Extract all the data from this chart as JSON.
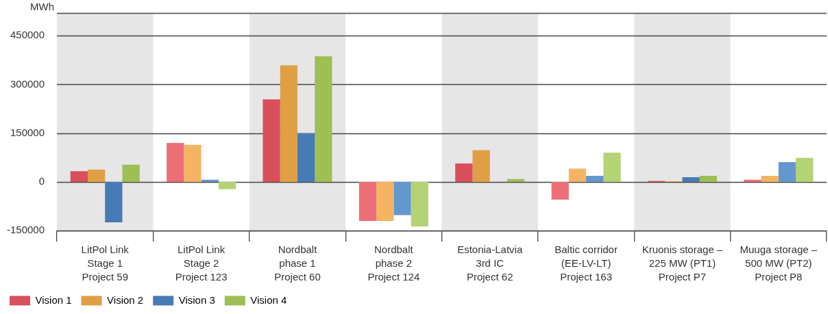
{
  "chart_data": {
    "type": "bar",
    "ylabel": "MWh",
    "categories": [
      "LitPol Link\nStage 1\nProject 59",
      "LitPol Link\nStage 2\nProject 123",
      "Nordbalt\nphase 1\nProject 60",
      "Nordbalt\nphase 2\nProject 124",
      "Estonia-Latvia\n3rd IC\nProject 62",
      "Baltic corridor\n(EE-LV-LT)\nProject 163",
      "Kruonis storage –\n225 MW (PT1)\nProject P7",
      "Muuga storage –\n500 MW (PT2)\nProject P8"
    ],
    "series": [
      {
        "name": "Vision 1",
        "color": "#d94f5c",
        "colors": [
          "#d94f5c",
          "#ec6f78",
          "#d94f5c",
          "#ec6f78",
          "#d94f5c",
          "#ec6f78",
          "#d94f5c",
          "#ec6f78"
        ],
        "values": [
          33000,
          120000,
          254000,
          -120000,
          57000,
          -54000,
          3000,
          7000
        ]
      },
      {
        "name": "Vision 2",
        "color": "#e09f44",
        "colors": [
          "#e09f44",
          "#f4b462",
          "#e09f44",
          "#f4b462",
          "#e09f44",
          "#f4b462",
          "#e09f44",
          "#f4b462"
        ],
        "values": [
          38000,
          114000,
          359000,
          -120000,
          98000,
          41000,
          2000,
          19000
        ]
      },
      {
        "name": "Vision 3",
        "color": "#477bb5",
        "colors": [
          "#477bb5",
          "#6398cf",
          "#477bb5",
          "#6398cf",
          "#477bb5",
          "#6398cf",
          "#477bb5",
          "#6398cf"
        ],
        "values": [
          -124000,
          7000,
          150000,
          -102000,
          0,
          19000,
          15000,
          61000
        ]
      },
      {
        "name": "Vision 4",
        "color": "#9dbf55",
        "colors": [
          "#9dbf55",
          "#b3d374",
          "#9dbf55",
          "#b3d374",
          "#9dbf55",
          "#b3d374",
          "#9dbf55",
          "#b3d374"
        ],
        "values": [
          53000,
          -22000,
          387000,
          -137000,
          9000,
          90000,
          19000,
          74000
        ]
      }
    ],
    "bands": [
      {
        "axis": "x",
        "from": "LitPol Link\nStage 1\nProject 59",
        "to": "LitPol Link\nStage 1\nProject 59",
        "color": "#e6e6e6"
      },
      {
        "axis": "x",
        "from": "Nordbalt\nphase 1\nProject 60",
        "to": "Nordbalt\nphase 1\nProject 60",
        "color": "#e6e6e6"
      },
      {
        "axis": "x",
        "from": "Estonia-Latvia\n3rd IC\nProject 62",
        "to": "Estonia-Latvia\n3rd IC\nProject 62",
        "color": "#e6e6e6"
      },
      {
        "axis": "x",
        "from": "Kruonis storage –\n225 MW (PT1)\nProject P7",
        "to": "Kruonis storage –\n225 MW (PT1)\nProject P7",
        "color": "#e6e6e6"
      }
    ],
    "ylim": [
      -150000,
      520000
    ],
    "yticks": [
      -150000,
      0,
      150000,
      300000,
      450000,
      {
        "value": 520000,
        "label": null
      }
    ],
    "grid": "y",
    "legend": "bottom left"
  }
}
